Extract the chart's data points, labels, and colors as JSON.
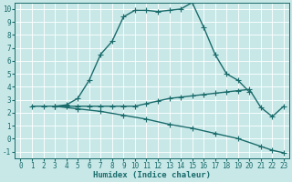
{
  "xlabel": "Humidex (Indice chaleur)",
  "xlim": [
    -0.5,
    23.5
  ],
  "ylim": [
    -1.5,
    10.5
  ],
  "xtick_labels": [
    "0",
    "1",
    "2",
    "3",
    "4",
    "5",
    "6",
    "7",
    "8",
    "9",
    "10",
    "11",
    "12",
    "13",
    "14",
    "15",
    "16",
    "17",
    "18",
    "19",
    "20",
    "21",
    "22",
    "23"
  ],
  "xtick_vals": [
    0,
    1,
    2,
    3,
    4,
    5,
    6,
    7,
    8,
    9,
    10,
    11,
    12,
    13,
    14,
    15,
    16,
    17,
    18,
    19,
    20,
    21,
    22,
    23
  ],
  "yticks": [
    -1,
    0,
    1,
    2,
    3,
    4,
    5,
    6,
    7,
    8,
    9,
    10
  ],
  "bg_color": "#c8e8e8",
  "line_color": "#1a6b6b",
  "line1_x": [
    1,
    2,
    3,
    4,
    5,
    6,
    7,
    8,
    9,
    10,
    11,
    12,
    13,
    14,
    15,
    16,
    17,
    18,
    19,
    20
  ],
  "line1_y": [
    2.5,
    2.5,
    2.5,
    2.6,
    3.1,
    4.5,
    6.5,
    7.5,
    9.4,
    9.9,
    9.9,
    9.8,
    9.9,
    10.0,
    10.5,
    8.6,
    6.5,
    5.0,
    4.5,
    3.6
  ],
  "line2_x": [
    3,
    4,
    5,
    6,
    7,
    8,
    9,
    10,
    11,
    12,
    13,
    14,
    15,
    16,
    17,
    18,
    19,
    20,
    21,
    22,
    23
  ],
  "line2_y": [
    2.5,
    2.5,
    2.5,
    2.5,
    2.5,
    2.5,
    2.5,
    2.5,
    2.7,
    2.9,
    3.1,
    3.2,
    3.3,
    3.4,
    3.5,
    3.6,
    3.7,
    3.8,
    2.4,
    1.7,
    2.5
  ],
  "line3_x": [
    3,
    5,
    7,
    9,
    11,
    13,
    15,
    17,
    19,
    21,
    22,
    23
  ],
  "line3_y": [
    2.5,
    2.3,
    2.1,
    1.8,
    1.5,
    1.1,
    0.8,
    0.4,
    0.0,
    -0.6,
    -0.9,
    -1.1
  ],
  "marker": "+",
  "markersize": 3,
  "linewidth": 1.0,
  "font_color": "#1a6b6b",
  "tick_fontsize": 5.5,
  "axis_label_fontsize": 6.5,
  "grid_color": "#ffffff",
  "grid_lw": 0.6
}
